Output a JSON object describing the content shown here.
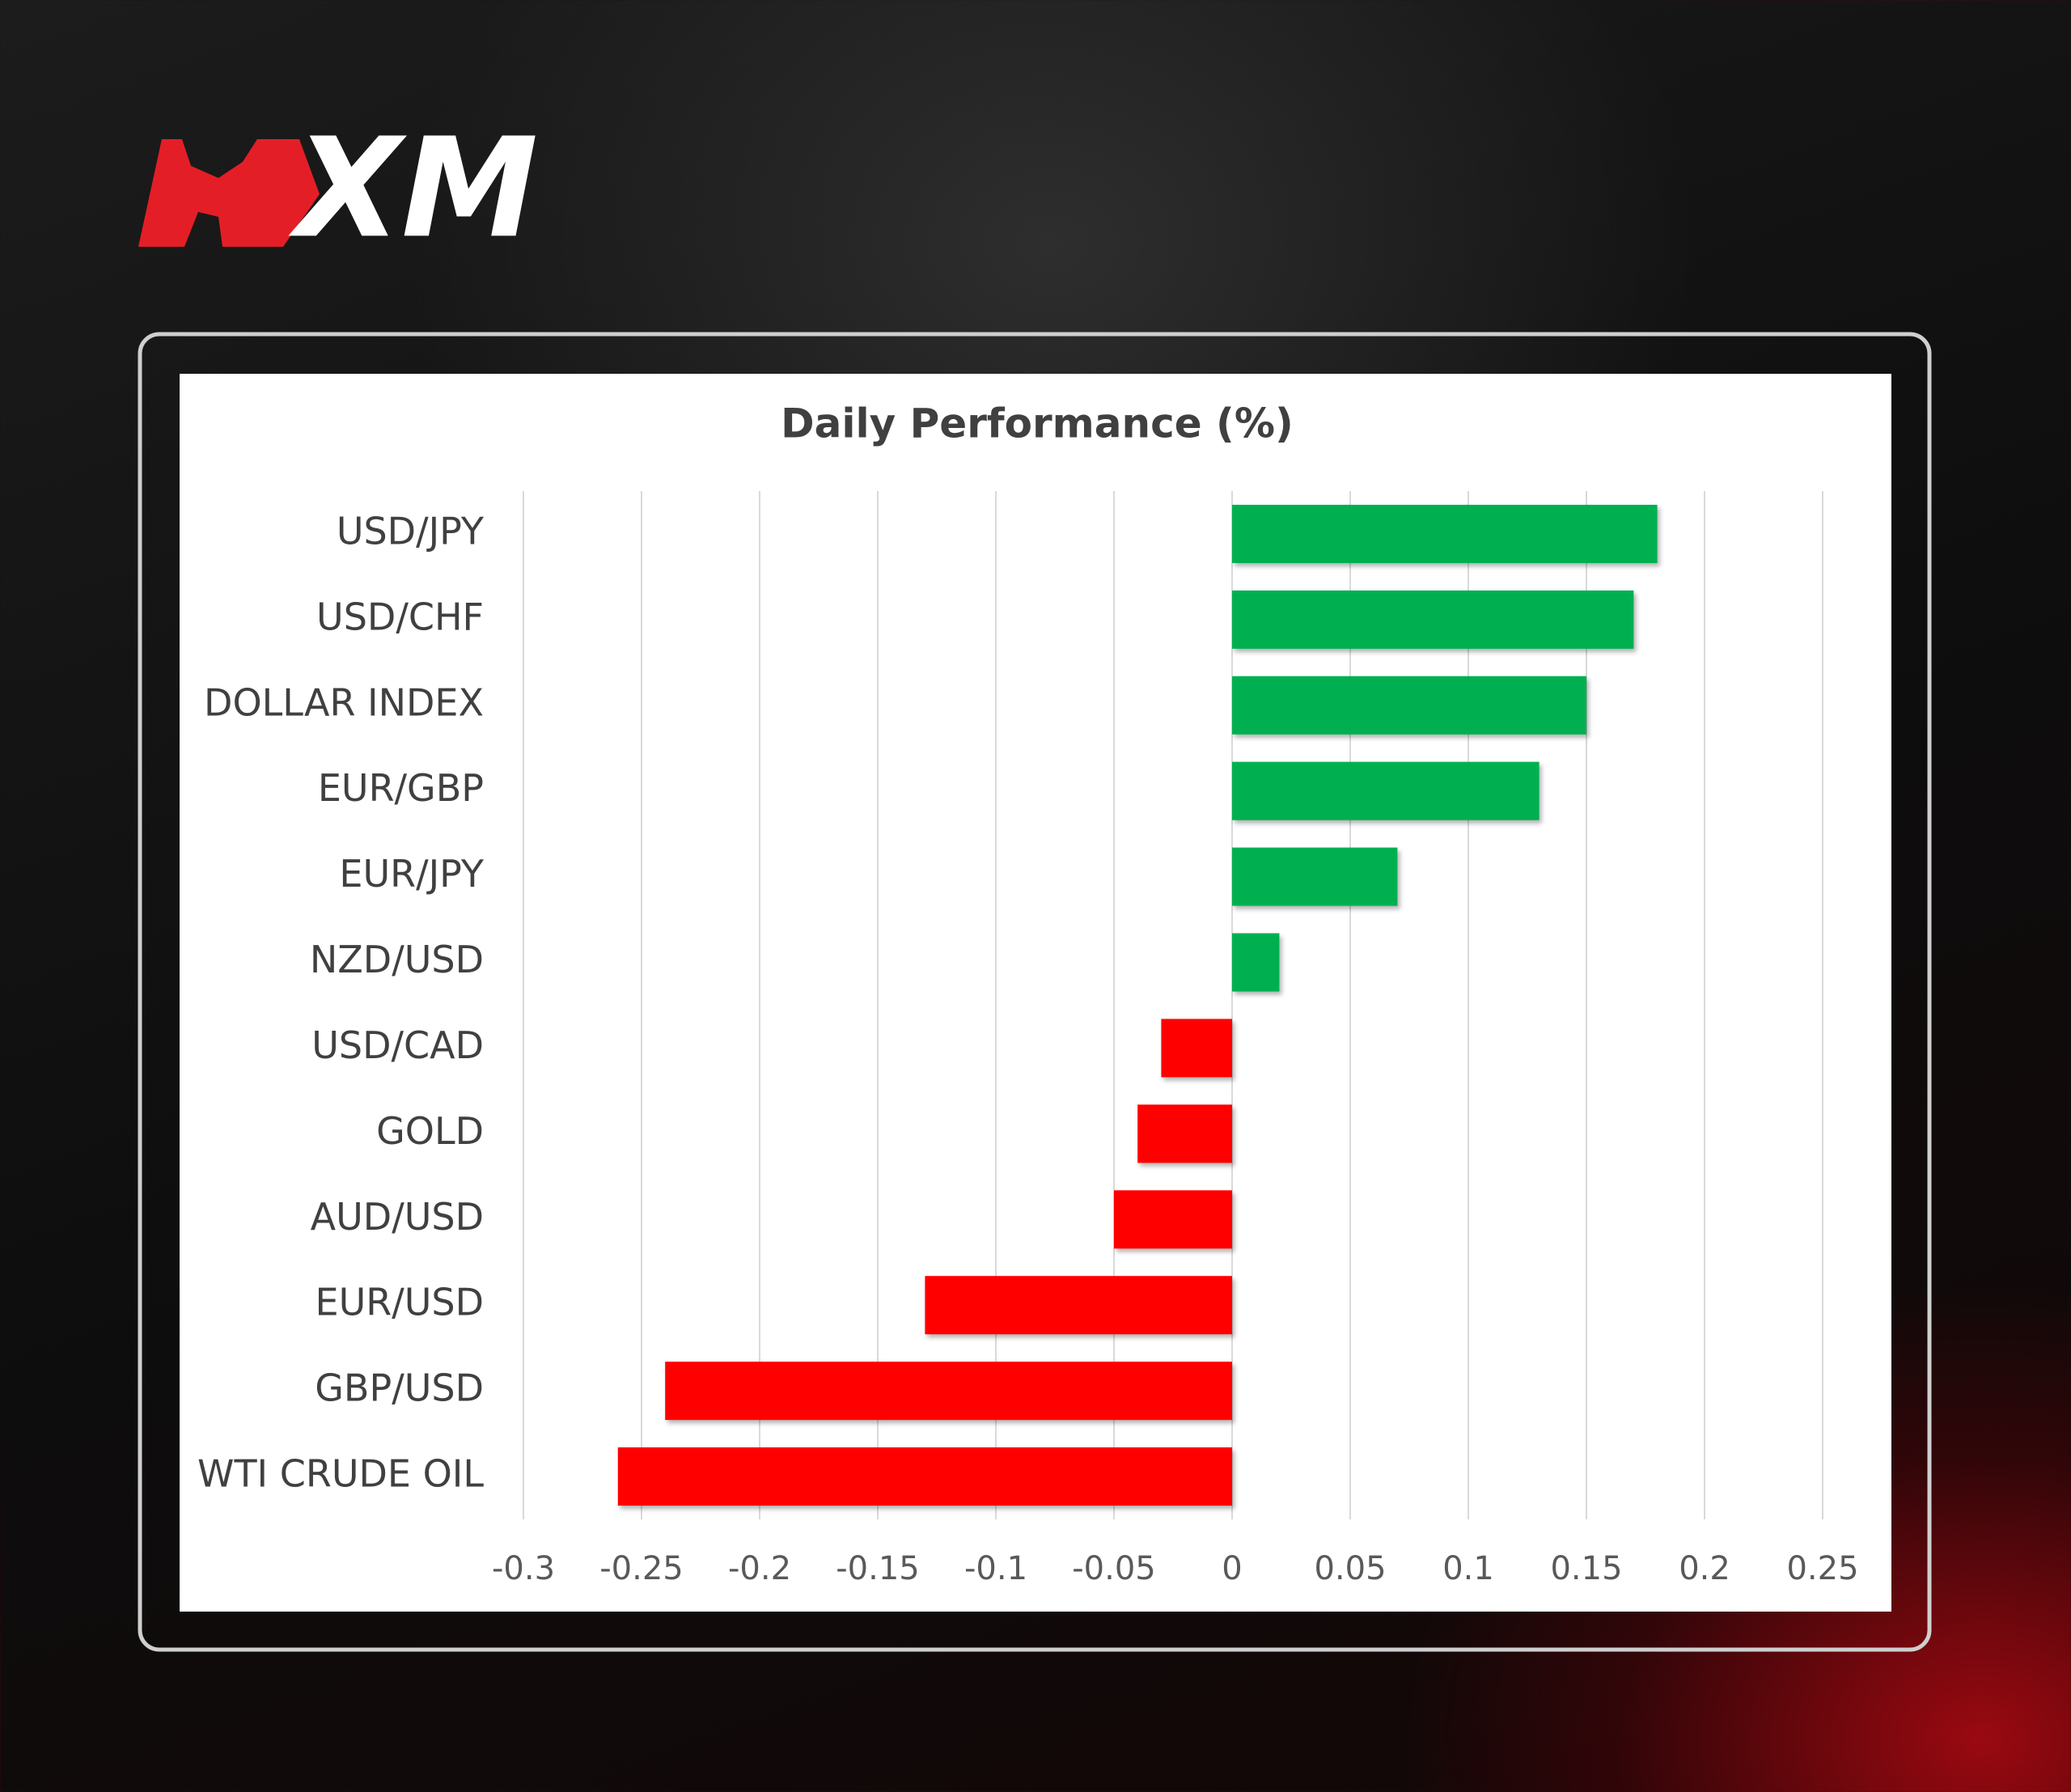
{
  "logo_text": "XM",
  "chart_data": {
    "type": "barh",
    "title": "Daily Performance (%)",
    "categories": [
      "USD/JPY",
      "USD/CHF",
      "DOLLAR INDEX",
      "EUR/GBP",
      "EUR/JPY",
      "NZD/USD",
      "USD/CAD",
      "GOLD",
      "AUD/USD",
      "EUR/USD",
      "GBP/USD",
      "WTI CRUDE OIL"
    ],
    "values": [
      0.18,
      0.17,
      0.15,
      0.13,
      0.07,
      0.02,
      -0.03,
      -0.04,
      -0.05,
      -0.13,
      -0.24,
      -0.26
    ],
    "positive_color": "#00b050",
    "negative_color": "#ff0000",
    "xlim": [
      -0.3,
      0.25
    ],
    "xticks": [
      -0.3,
      -0.25,
      -0.2,
      -0.15,
      -0.1,
      -0.05,
      0,
      0.05,
      0.1,
      0.15,
      0.2,
      0.25
    ],
    "grid": true
  }
}
